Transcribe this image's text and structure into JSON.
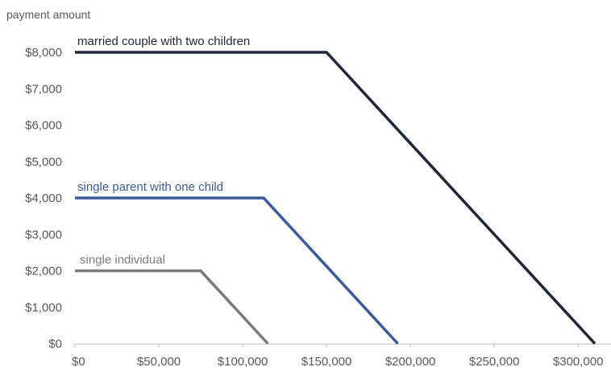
{
  "chart_data": {
    "type": "line",
    "ylabel": "payment amount",
    "xlabel": "",
    "xlim": [
      0,
      310000
    ],
    "ylim": [
      0,
      8000
    ],
    "x_ticks": [
      0,
      50000,
      100000,
      150000,
      200000,
      250000,
      300000
    ],
    "x_tick_labels": [
      "$0",
      "$50,000",
      "$100,000",
      "$150,000",
      "$200,000",
      "$250,000",
      "$300,000"
    ],
    "y_ticks": [
      0,
      1000,
      2000,
      3000,
      4000,
      5000,
      6000,
      7000,
      8000
    ],
    "y_tick_labels": [
      "$0",
      "$1,000",
      "$2,000",
      "$3,000",
      "$4,000",
      "$5,000",
      "$6,000",
      "$7,000",
      "$8,000"
    ],
    "grid": false,
    "series": [
      {
        "name": "married couple with two children",
        "color": "#1f2636",
        "x": [
          0,
          150000,
          310000
        ],
        "y": [
          8000,
          8000,
          0
        ]
      },
      {
        "name": "single parent with one child",
        "color": "#3a5a9a",
        "x": [
          0,
          112500,
          192500
        ],
        "y": [
          4000,
          4000,
          0
        ]
      },
      {
        "name": "single individual",
        "color": "#7a7a7a",
        "x": [
          0,
          75000,
          115000
        ],
        "y": [
          2000,
          2000,
          0
        ]
      }
    ]
  }
}
